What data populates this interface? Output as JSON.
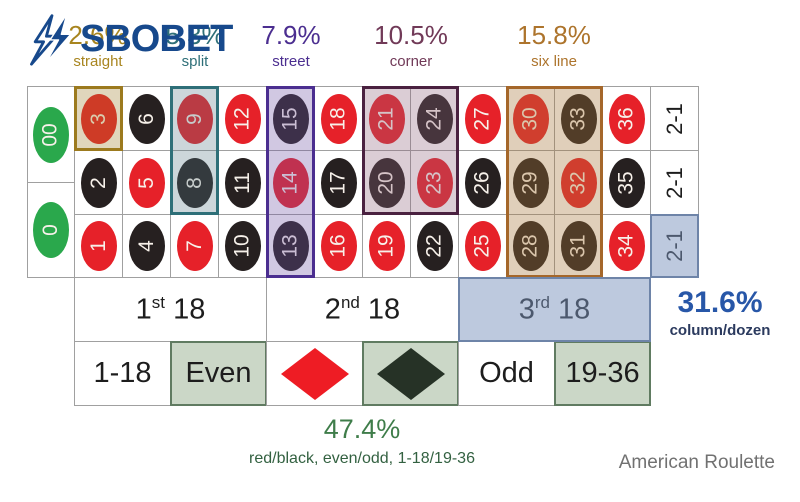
{
  "brand": {
    "name": "SBOBET",
    "color": "#17498c",
    "icon": "lightning-bolt-icon"
  },
  "title": "American Roulette",
  "bet_odds": [
    {
      "pct": "2.6%",
      "label": "straight",
      "color": "#a8851f"
    },
    {
      "pct": "5.3%",
      "label": "split",
      "color": "#2e6f78"
    },
    {
      "pct": "7.9%",
      "label": "street",
      "color": "#4b2e90"
    },
    {
      "pct": "10.5%",
      "label": "corner",
      "color": "#713a58"
    },
    {
      "pct": "15.8%",
      "label": "six line",
      "color": "#ad742c"
    },
    {
      "pct": "31.6%",
      "label": "column/dozen",
      "color": "#2857a8",
      "label_color": "#2b3a5e"
    },
    {
      "pct": "47.4%",
      "label": "red/black, even/odd, 1-18/19-36",
      "color": "#3f7d4a",
      "label_color": "#336141"
    }
  ],
  "board": {
    "zeros": [
      {
        "n": "00",
        "c": "green"
      },
      {
        "n": "0",
        "c": "green"
      }
    ],
    "columns": [
      [
        {
          "n": "3",
          "c": "red"
        },
        {
          "n": "2",
          "c": "black"
        },
        {
          "n": "1",
          "c": "red"
        }
      ],
      [
        {
          "n": "6",
          "c": "black"
        },
        {
          "n": "5",
          "c": "red"
        },
        {
          "n": "4",
          "c": "black"
        }
      ],
      [
        {
          "n": "9",
          "c": "red"
        },
        {
          "n": "8",
          "c": "black"
        },
        {
          "n": "7",
          "c": "red"
        }
      ],
      [
        {
          "n": "12",
          "c": "red"
        },
        {
          "n": "11",
          "c": "black"
        },
        {
          "n": "10",
          "c": "black"
        }
      ],
      [
        {
          "n": "15",
          "c": "black"
        },
        {
          "n": "14",
          "c": "red"
        },
        {
          "n": "13",
          "c": "black"
        }
      ],
      [
        {
          "n": "18",
          "c": "red"
        },
        {
          "n": "17",
          "c": "black"
        },
        {
          "n": "16",
          "c": "red"
        }
      ],
      [
        {
          "n": "21",
          "c": "red"
        },
        {
          "n": "20",
          "c": "black"
        },
        {
          "n": "19",
          "c": "red"
        }
      ],
      [
        {
          "n": "24",
          "c": "black"
        },
        {
          "n": "23",
          "c": "red"
        },
        {
          "n": "22",
          "c": "black"
        }
      ],
      [
        {
          "n": "27",
          "c": "red"
        },
        {
          "n": "26",
          "c": "black"
        },
        {
          "n": "25",
          "c": "red"
        }
      ],
      [
        {
          "n": "30",
          "c": "red"
        },
        {
          "n": "29",
          "c": "black"
        },
        {
          "n": "28",
          "c": "black"
        }
      ],
      [
        {
          "n": "33",
          "c": "black"
        },
        {
          "n": "32",
          "c": "red"
        },
        {
          "n": "31",
          "c": "black"
        }
      ],
      [
        {
          "n": "36",
          "c": "red"
        },
        {
          "n": "35",
          "c": "black"
        },
        {
          "n": "34",
          "c": "red"
        }
      ]
    ],
    "column_bets": [
      "2-1",
      "2-1",
      "2-1"
    ],
    "dozens": [
      {
        "num": "1",
        "sup": "st",
        "rest": "18"
      },
      {
        "num": "2",
        "sup": "nd",
        "rest": "18"
      },
      {
        "num": "3",
        "sup": "rd",
        "rest": "18"
      }
    ],
    "outside": [
      {
        "label": "1-18",
        "variant": "white"
      },
      {
        "label": "Even",
        "variant": "sage"
      },
      {
        "icon": "red-diamond-icon",
        "variant": "white",
        "color": "#ee1c24"
      },
      {
        "icon": "black-diamond-icon",
        "variant": "sage",
        "color": "#263226"
      },
      {
        "label": "Odd",
        "variant": "white"
      },
      {
        "label": "19-36",
        "variant": "sage"
      }
    ]
  },
  "highlights": [
    {
      "key": "straight",
      "covers": [
        "3"
      ],
      "bg": "rgba(152,118,32,0.30)",
      "border": "#9c7a1e"
    },
    {
      "key": "split",
      "covers": [
        "8",
        "9"
      ],
      "bg": "rgba(85,118,132,0.30)",
      "border": "#2e6f78"
    },
    {
      "key": "street",
      "covers": [
        "13",
        "14",
        "15"
      ],
      "bg": "rgba(112,85,165,0.32)",
      "border": "#4b2e90"
    },
    {
      "key": "corner",
      "covers": [
        "20",
        "21",
        "23",
        "24"
      ],
      "bg": "rgba(142,98,125,0.32)",
      "border": "#4a2140"
    },
    {
      "key": "six_line",
      "covers": [
        "28",
        "29",
        "30",
        "31",
        "32",
        "33"
      ],
      "bg": "rgba(165,118,58,0.35)",
      "border": "#a5672a"
    },
    {
      "key": "column_bet",
      "covers": [
        "2-1 third row"
      ],
      "bg": "rgba(124,148,190,0.50)",
      "border": "#6e84a8"
    },
    {
      "key": "dozen_bet",
      "covers": [
        "3rd 18"
      ],
      "bg": "rgba(124,148,190,0.50)",
      "border": "#6e84a8"
    }
  ]
}
